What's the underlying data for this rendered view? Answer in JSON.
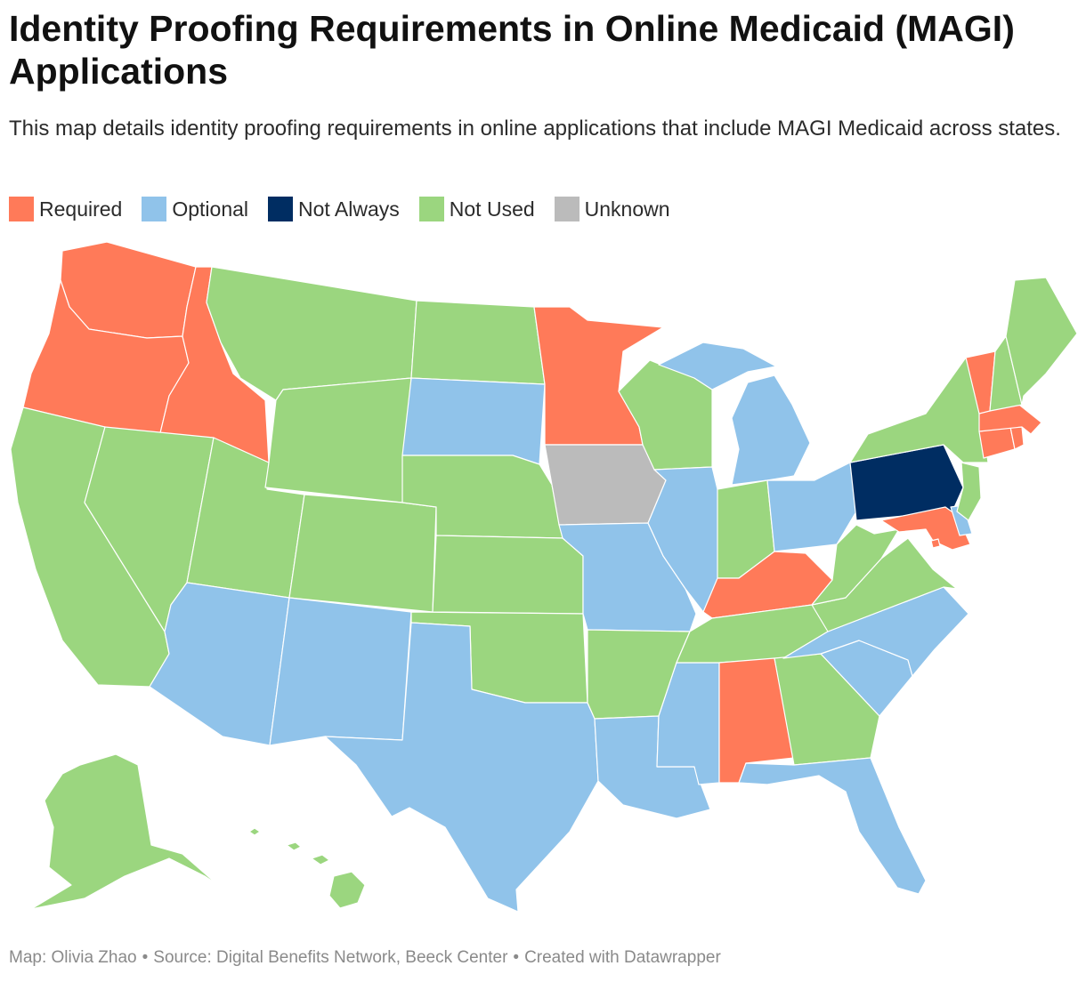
{
  "title": "Identity Proofing Requirements in Online Medicaid (MAGI) Applications",
  "subtitle": "This map details identity proofing requirements in online applications that include MAGI Medicaid across states.",
  "legend": [
    {
      "label": "Required",
      "color": "#ff7a59"
    },
    {
      "label": "Optional",
      "color": "#90c3ea"
    },
    {
      "label": "Not Always",
      "color": "#002d62"
    },
    {
      "label": "Not Used",
      "color": "#9bd67f"
    },
    {
      "label": "Unknown",
      "color": "#bbbbbb"
    }
  ],
  "states": {
    "WA": "Required",
    "OR": "Required",
    "ID": "Required",
    "MN": "Required",
    "VT": "Required",
    "MA": "Required",
    "CT": "Required",
    "RI": "Required",
    "MD": "Required",
    "KY": "Required",
    "AL": "Required",
    "DC": "Required",
    "SD": "Optional",
    "MI": "Optional",
    "IL": "Optional",
    "MO": "Optional",
    "OH": "Optional",
    "AZ": "Optional",
    "NM": "Optional",
    "TX": "Optional",
    "LA": "Optional",
    "MS": "Optional",
    "NC": "Optional",
    "SC": "Optional",
    "FL": "Optional",
    "DE": "Optional",
    "PA": "Not Always",
    "IA": "Unknown",
    "CA": "Not Used",
    "NV": "Not Used",
    "UT": "Not Used",
    "MT": "Not Used",
    "WY": "Not Used",
    "CO": "Not Used",
    "ND": "Not Used",
    "NE": "Not Used",
    "KS": "Not Used",
    "OK": "Not Used",
    "AR": "Not Used",
    "WI": "Not Used",
    "IN": "Not Used",
    "TN": "Not Used",
    "GA": "Not Used",
    "VA": "Not Used",
    "WV": "Not Used",
    "NY": "Not Used",
    "NJ": "Not Used",
    "NH": "Not Used",
    "ME": "Not Used",
    "AK": "Not Used",
    "HI": "Not Used"
  },
  "footer": {
    "map_credit": "Map: Olivia Zhao",
    "source": "Source: Digital Benefits Network, Beeck Center",
    "tool": "Created with Datawrapper"
  }
}
